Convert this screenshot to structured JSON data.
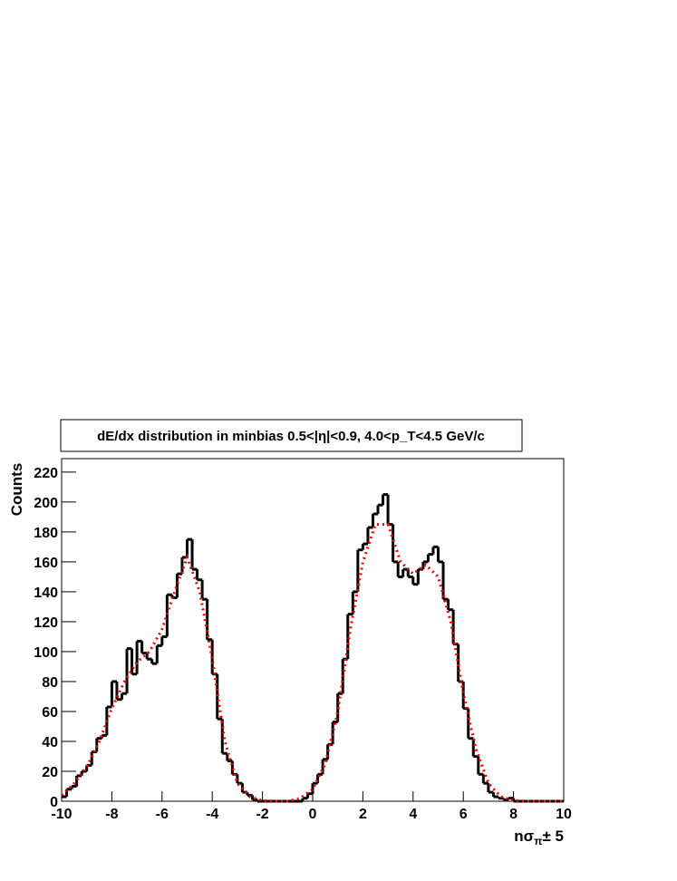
{
  "chart_data": {
    "type": "histogram",
    "title": "dE/dx distribution in minbias 0.5<|η|<0.9, 4.0<p_T<4.5 GeV/c",
    "ylabel": "Counts",
    "xlabel_parts": [
      "nσ",
      "π",
      "± 5"
    ],
    "bins": [
      -10,
      -9.8,
      -9.6,
      -9.4,
      -9.2,
      -9,
      -8.8,
      -8.6,
      -8.4,
      -8.2,
      -8,
      -7.8,
      -7.6,
      -7.4,
      -7.2,
      -7,
      -6.8,
      -6.6,
      -6.4,
      -6.2,
      -6,
      -5.8,
      -5.6,
      -5.4,
      -5.2,
      -5,
      -4.8,
      -4.6,
      -4.4,
      -4.2,
      -4,
      -3.8,
      -3.6,
      -3.4,
      -3.2,
      -3,
      -2.8,
      -2.6,
      -2.4,
      -2.2,
      -2,
      -1.8,
      -1.6,
      -1.4,
      -1.2,
      -1,
      -0.8,
      -0.6,
      -0.4,
      -0.2,
      0,
      0.2,
      0.4,
      0.6,
      0.8,
      1,
      1.2,
      1.4,
      1.6,
      1.8,
      2,
      2.2,
      2.4,
      2.6,
      2.8,
      3,
      3.2,
      3.4,
      3.6,
      3.8,
      4,
      4.2,
      4.4,
      4.6,
      4.8,
      5,
      5.2,
      5.4,
      5.6,
      5.8,
      6,
      6.2,
      6.4,
      6.6,
      6.8,
      7,
      7.2,
      7.4,
      7.6,
      7.8,
      8,
      8.2,
      8.4,
      8.6,
      8.8,
      9,
      9.2,
      9.4,
      9.6,
      9.8,
      10
    ],
    "values": [
      3,
      8,
      10,
      17,
      20,
      24,
      33,
      42,
      44,
      63,
      80,
      68,
      72,
      102,
      85,
      107,
      99,
      95,
      92,
      104,
      110,
      138,
      136,
      152,
      163,
      175,
      155,
      148,
      135,
      108,
      85,
      55,
      32,
      27,
      18,
      12,
      6,
      4,
      1,
      0,
      0,
      0,
      0,
      0,
      0,
      0,
      0,
      0,
      2,
      5,
      12,
      18,
      28,
      38,
      53,
      72,
      95,
      125,
      140,
      168,
      172,
      183,
      192,
      198,
      205,
      185,
      160,
      150,
      155,
      150,
      145,
      155,
      160,
      165,
      170,
      160,
      135,
      128,
      105,
      80,
      62,
      42,
      30,
      18,
      12,
      6,
      3,
      2,
      1,
      2,
      0,
      0,
      0,
      0,
      0,
      0,
      0,
      0,
      0,
      0
    ],
    "color": "#000000",
    "fit": {
      "color": "#ff0000",
      "x": [
        -10,
        -9.5,
        -9,
        -8.5,
        -8,
        -7.5,
        -7,
        -6.5,
        -6,
        -5.5,
        -5,
        -4.5,
        -4,
        -3.5,
        -3,
        -2.5,
        -2,
        -1.5,
        -1,
        -0.5,
        0,
        0.5,
        1,
        1.5,
        2,
        2.5,
        3,
        3.5,
        4,
        4.5,
        5,
        5.5,
        6,
        6.5,
        7,
        7.5,
        8,
        8.5,
        9,
        9.5,
        10
      ],
      "values": [
        4,
        12,
        23,
        40,
        62,
        80,
        93,
        100,
        115,
        140,
        163,
        140,
        95,
        40,
        12,
        3,
        0.5,
        0,
        0,
        2,
        8,
        25,
        60,
        115,
        160,
        185,
        185,
        160,
        152,
        158,
        150,
        120,
        72,
        35,
        12,
        3,
        0.5,
        0,
        0,
        0,
        0
      ]
    },
    "xlim": [
      -10,
      10
    ],
    "xticks": [
      -10,
      -8,
      -6,
      -4,
      -2,
      0,
      2,
      4,
      6,
      8,
      10
    ],
    "ylim": [
      0,
      229
    ],
    "yticks": [
      0,
      20,
      40,
      60,
      80,
      100,
      120,
      140,
      160,
      180,
      200,
      220
    ]
  }
}
